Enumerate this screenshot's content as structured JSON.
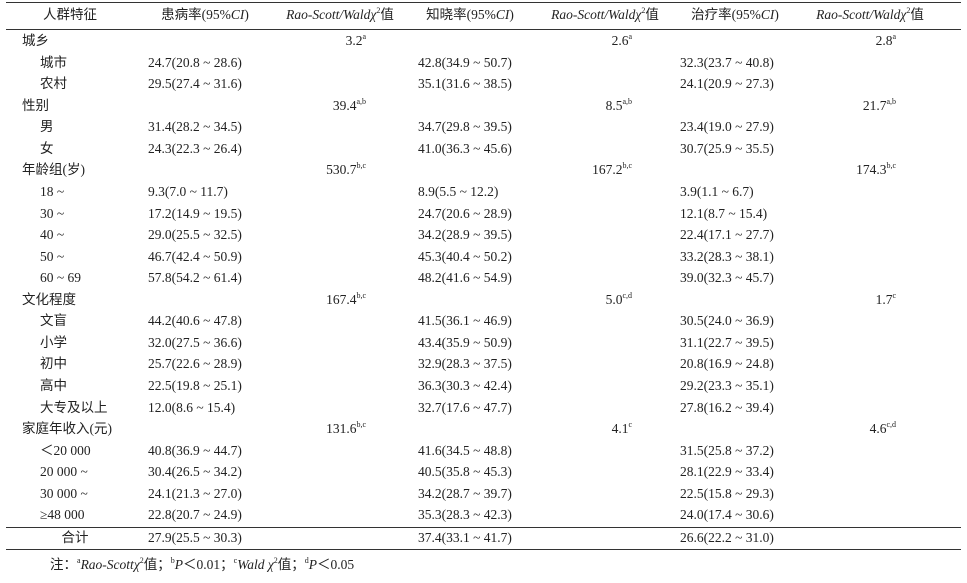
{
  "table": {
    "header": [
      [
        {
          "text": "人群特征"
        }
      ],
      [
        {
          "text": "患病率(95%"
        },
        {
          "text": "CI",
          "italic": true
        },
        {
          "text": ")"
        }
      ],
      [
        {
          "text": "Rao-Scott/Wald",
          "italic": true
        },
        {
          "text": "χ",
          "italic": true
        },
        {
          "text": "2",
          "sup": true
        },
        {
          "text": "值"
        }
      ],
      [
        {
          "text": "知晓率(95%"
        },
        {
          "text": "CI",
          "italic": true
        },
        {
          "text": ")"
        }
      ],
      [
        {
          "text": "Rao-Scott/Wald",
          "italic": true
        },
        {
          "text": "χ",
          "italic": true
        },
        {
          "text": "2",
          "sup": true
        },
        {
          "text": "值"
        }
      ],
      [
        {
          "text": "治疗率(95%"
        },
        {
          "text": "CI",
          "italic": true
        },
        {
          "text": ")"
        }
      ],
      [
        {
          "text": "Rao-Scott/Wald",
          "italic": true
        },
        {
          "text": "χ",
          "italic": true
        },
        {
          "text": "2",
          "sup": true
        },
        {
          "text": "值"
        }
      ]
    ],
    "rows": [
      {
        "label": "城乡",
        "cells": [
          null,
          {
            "text": "3.2",
            "sup": "a"
          },
          null,
          {
            "text": "2.6",
            "sup": "a"
          },
          null,
          {
            "text": "2.8",
            "sup": "a"
          }
        ]
      },
      {
        "label": "城市",
        "indent": true,
        "cells": [
          "24.7(20.8 ~ 28.6)",
          null,
          "42.8(34.9 ~ 50.7)",
          null,
          "32.3(23.7 ~ 40.8)",
          null
        ]
      },
      {
        "label": "农村",
        "indent": true,
        "cells": [
          "29.5(27.4 ~ 31.6)",
          null,
          "35.1(31.6 ~ 38.5)",
          null,
          "24.1(20.9 ~ 27.3)",
          null
        ]
      },
      {
        "label": "性别",
        "cells": [
          null,
          {
            "text": "39.4",
            "sup": "a,b"
          },
          null,
          {
            "text": "8.5",
            "sup": "a,b"
          },
          null,
          {
            "text": "21.7",
            "sup": "a,b"
          }
        ]
      },
      {
        "label": "男",
        "indent": true,
        "cells": [
          "31.4(28.2 ~ 34.5)",
          null,
          "34.7(29.8 ~ 39.5)",
          null,
          "23.4(19.0 ~ 27.9)",
          null
        ]
      },
      {
        "label": "女",
        "indent": true,
        "cells": [
          "24.3(22.3 ~ 26.4)",
          null,
          "41.0(36.3 ~ 45.6)",
          null,
          "30.7(25.9 ~ 35.5)",
          null
        ]
      },
      {
        "label": "年龄组(岁)",
        "cells": [
          null,
          {
            "text": "530.7",
            "sup": "b,c"
          },
          null,
          {
            "text": "167.2",
            "sup": "b,c"
          },
          null,
          {
            "text": "174.3",
            "sup": "b,c"
          }
        ]
      },
      {
        "label": "18 ~",
        "indent": true,
        "cells": [
          "9.3(7.0 ~ 11.7)",
          null,
          "8.9(5.5 ~ 12.2)",
          null,
          "3.9(1.1 ~ 6.7)",
          null
        ]
      },
      {
        "label": "30 ~",
        "indent": true,
        "cells": [
          "17.2(14.9 ~ 19.5)",
          null,
          "24.7(20.6 ~ 28.9)",
          null,
          "12.1(8.7 ~ 15.4)",
          null
        ]
      },
      {
        "label": "40 ~",
        "indent": true,
        "cells": [
          "29.0(25.5 ~ 32.5)",
          null,
          "34.2(28.9 ~ 39.5)",
          null,
          "22.4(17.1 ~ 27.7)",
          null
        ]
      },
      {
        "label": "50 ~",
        "indent": true,
        "cells": [
          "46.7(42.4 ~ 50.9)",
          null,
          "45.3(40.4 ~ 50.2)",
          null,
          "33.2(28.3 ~ 38.1)",
          null
        ]
      },
      {
        "label": "60 ~ 69",
        "indent": true,
        "cells": [
          "57.8(54.2 ~ 61.4)",
          null,
          "48.2(41.6 ~ 54.9)",
          null,
          "39.0(32.3 ~ 45.7)",
          null
        ]
      },
      {
        "label": "文化程度",
        "cells": [
          null,
          {
            "text": "167.4",
            "sup": "b,c"
          },
          null,
          {
            "text": "5.0",
            "sup": "c,d"
          },
          null,
          {
            "text": "1.7",
            "sup": "c"
          }
        ]
      },
      {
        "label": "文盲",
        "indent": true,
        "cells": [
          "44.2(40.6 ~ 47.8)",
          null,
          "41.5(36.1 ~ 46.9)",
          null,
          "30.5(24.0 ~ 36.9)",
          null
        ]
      },
      {
        "label": "小学",
        "indent": true,
        "cells": [
          "32.0(27.5 ~ 36.6)",
          null,
          "43.4(35.9 ~ 50.9)",
          null,
          "31.1(22.7 ~ 39.5)",
          null
        ]
      },
      {
        "label": "初中",
        "indent": true,
        "cells": [
          "25.7(22.6 ~ 28.9)",
          null,
          "32.9(28.3 ~ 37.5)",
          null,
          "20.8(16.9 ~ 24.8)",
          null
        ]
      },
      {
        "label": "高中",
        "indent": true,
        "cells": [
          "22.5(19.8 ~ 25.1)",
          null,
          "36.3(30.3 ~ 42.4)",
          null,
          "29.2(23.3 ~ 35.1)",
          null
        ]
      },
      {
        "label": "大专及以上",
        "indent": true,
        "cells": [
          "12.0(8.6 ~ 15.4)",
          null,
          "32.7(17.6 ~ 47.7)",
          null,
          "27.8(16.2 ~ 39.4)",
          null
        ]
      },
      {
        "label": "家庭年收入(元)",
        "cells": [
          null,
          {
            "text": "131.6",
            "sup": "b,c"
          },
          null,
          {
            "text": "4.1",
            "sup": "c"
          },
          null,
          {
            "text": "4.6",
            "sup": "c,d"
          }
        ]
      },
      {
        "label": "＜20 000",
        "indent": true,
        "cells": [
          "40.8(36.9 ~ 44.7)",
          null,
          "41.6(34.5 ~ 48.8)",
          null,
          "31.5(25.8 ~ 37.2)",
          null
        ]
      },
      {
        "label": "20 000 ~",
        "indent": true,
        "cells": [
          "30.4(26.5 ~ 34.2)",
          null,
          "40.5(35.8 ~ 45.3)",
          null,
          "28.1(22.9 ~ 33.4)",
          null
        ]
      },
      {
        "label": "30 000 ~",
        "indent": true,
        "cells": [
          "24.1(21.3 ~ 27.0)",
          null,
          "34.2(28.7 ~ 39.7)",
          null,
          "22.5(15.8 ~ 29.3)",
          null
        ]
      },
      {
        "label": "≥48 000",
        "indent": true,
        "cells": [
          "22.8(20.7 ~ 24.9)",
          null,
          "35.3(28.3 ~ 42.3)",
          null,
          "24.0(17.4 ~ 30.6)",
          null
        ]
      }
    ],
    "total": {
      "label": "合计",
      "cells": [
        "27.9(25.5 ~ 30.3)",
        null,
        "37.4(33.1 ~ 41.7)",
        null,
        "26.6(22.2 ~ 31.0)",
        null
      ]
    },
    "footnote": [
      {
        "text": "注："
      },
      {
        "text": "a",
        "sup": true
      },
      {
        "text": "Rao-Scott",
        "italic": true
      },
      {
        "text": "χ",
        "italic": true
      },
      {
        "text": "2",
        "sup": true
      },
      {
        "text": "值；"
      },
      {
        "text": "b",
        "sup": true
      },
      {
        "text": "P",
        "italic": true
      },
      {
        "text": "＜0.01；"
      },
      {
        "text": "c",
        "sup": true
      },
      {
        "text": "Wald",
        "italic": true
      },
      {
        "text": " "
      },
      {
        "text": "χ",
        "italic": true
      },
      {
        "text": "2",
        "sup": true
      },
      {
        "text": "值；"
      },
      {
        "text": "d",
        "sup": true
      },
      {
        "text": "P",
        "italic": true
      },
      {
        "text": "＜0.05"
      }
    ]
  }
}
